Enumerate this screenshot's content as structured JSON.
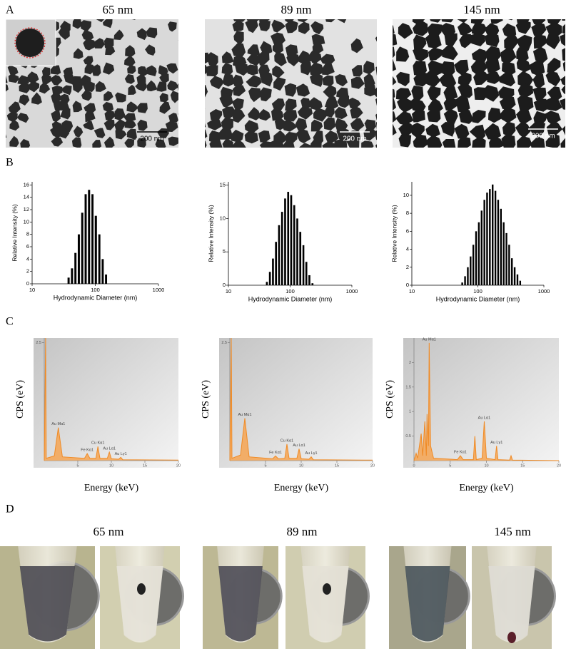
{
  "panel_labels": [
    "A",
    "B",
    "C",
    "D"
  ],
  "tem": {
    "titles": [
      "65 nm",
      "89 nm",
      "145 nm"
    ],
    "scale_bars": [
      "200 nm",
      "200 nm",
      "200 nm"
    ]
  },
  "chart_data": [
    {
      "type": "bar",
      "xscale": "log",
      "color": "#000000",
      "x": [
        37.8,
        42.8,
        48.5,
        54.9,
        62.2,
        70.4,
        79.7,
        90.3,
        102,
        116,
        131,
        148
      ],
      "values": [
        1,
        2.5,
        5,
        8,
        11.5,
        14.5,
        15.2,
        14.5,
        11,
        8,
        4,
        1.5
      ],
      "xlim": [
        10,
        1000
      ],
      "xticks": [
        10,
        100,
        1000
      ],
      "ylim": [
        0,
        16.5
      ],
      "yticks": [
        0,
        2,
        4,
        6,
        8,
        10,
        12,
        14,
        16
      ],
      "xlabel": "Hydrodynamic Diameter (nm)",
      "ylabel": "Relative Intensity (%)"
    },
    {
      "type": "bar",
      "xscale": "log",
      "color": "#000000",
      "x": [
        42,
        47,
        52.7,
        59,
        66.1,
        74,
        82.9,
        92.9,
        104,
        116.5,
        130.5,
        146,
        164,
        183,
        205,
        230
      ],
      "values": [
        0.5,
        2,
        4,
        6.5,
        9,
        11,
        13,
        14,
        13.5,
        12,
        10,
        8,
        6,
        3.5,
        1.5,
        0.3
      ],
      "xlim": [
        10,
        1000
      ],
      "xticks": [
        10,
        100,
        1000
      ],
      "ylim": [
        0,
        15.5
      ],
      "yticks": [
        0,
        5,
        10,
        15
      ],
      "xlabel": "Hydrodynamic Diameter (nm)",
      "ylabel": "Relative Intensity (%)"
    },
    {
      "type": "bar",
      "xscale": "log",
      "color": "#000000",
      "x": [
        58,
        64,
        70.5,
        77.6,
        85.4,
        94,
        103.5,
        114,
        125.5,
        138,
        152,
        167.5,
        184.5,
        203,
        223.5,
        246,
        271,
        298,
        328,
        361,
        398,
        438
      ],
      "values": [
        0.3,
        1,
        2,
        3.2,
        4.5,
        6,
        7,
        8.3,
        9.5,
        10.3,
        10.7,
        11.2,
        10.5,
        9.5,
        8.5,
        7,
        5.8,
        4.5,
        3,
        2,
        1.2,
        0.5
      ],
      "xlim": [
        10,
        1000
      ],
      "xticks": [
        10,
        100,
        1000
      ],
      "ylim": [
        0,
        11.5
      ],
      "yticks": [
        0,
        2,
        4,
        6,
        8,
        10
      ],
      "xlabel": "Hydrodynamic Diameter (nm)",
      "ylabel": "Relative Intensity (%)"
    },
    {
      "type": "line",
      "color": "#f08a24",
      "x": [
        0,
        0.2,
        0.3,
        1.5,
        2.1,
        2.7,
        6.0,
        6.4,
        6.8,
        7.7,
        8.0,
        8.3,
        9.4,
        9.7,
        10.0,
        11.1,
        11.4,
        11.7,
        20
      ],
      "values": [
        0,
        2.6,
        0.05,
        0.1,
        0.7,
        0.08,
        0.05,
        0.15,
        0.05,
        0.05,
        0.3,
        0.05,
        0.05,
        0.18,
        0.04,
        0.03,
        0.07,
        0.02,
        0.01
      ],
      "xlim": [
        0,
        20
      ],
      "xticks": [
        5,
        10,
        15,
        20
      ],
      "ylim": [
        0,
        2.6
      ],
      "yticks": [
        2.5
      ],
      "xlabel": "Energy (keV)",
      "ylabel": "CPS (eV)",
      "annotations": [
        {
          "text": "Au Mα1",
          "x": 2.1
        },
        {
          "text": "Fe Kα1",
          "x": 6.4
        },
        {
          "text": "Cu Kα1",
          "x": 8.0
        },
        {
          "text": "Au Lα1",
          "x": 9.7
        },
        {
          "text": "Au Lγ1",
          "x": 11.4
        }
      ]
    },
    {
      "type": "line",
      "color": "#f08a24",
      "x": [
        0,
        0.2,
        0.3,
        1.5,
        2.1,
        2.7,
        6.0,
        6.4,
        6.8,
        7.7,
        8.0,
        8.3,
        9.4,
        9.7,
        10.0,
        11.1,
        11.4,
        11.7,
        20
      ],
      "values": [
        0,
        2.6,
        0.05,
        0.12,
        0.9,
        0.08,
        0.04,
        0.1,
        0.04,
        0.05,
        0.35,
        0.05,
        0.05,
        0.25,
        0.04,
        0.03,
        0.08,
        0.02,
        0.01
      ],
      "xlim": [
        0,
        20
      ],
      "xticks": [
        5,
        10,
        15,
        20
      ],
      "ylim": [
        0,
        2.6
      ],
      "yticks": [
        2.5
      ],
      "xlabel": "Energy (keV)",
      "ylabel": "CPS (eV)",
      "annotations": [
        {
          "text": "Au Mα1",
          "x": 2.1
        },
        {
          "text": "Fe Kα1",
          "x": 6.4
        },
        {
          "text": "Cu Kα1",
          "x": 8.0
        },
        {
          "text": "Au Lα1",
          "x": 9.7
        },
        {
          "text": "Au Lγ1",
          "x": 11.4
        }
      ]
    },
    {
      "type": "line",
      "color": "#f08a24",
      "x": [
        0,
        0.3,
        0.5,
        1.0,
        1.2,
        1.5,
        1.7,
        1.8,
        2.0,
        2.1,
        2.3,
        2.7,
        6.0,
        6.4,
        6.8,
        8.2,
        8.4,
        8.6,
        9.4,
        9.7,
        10.0,
        11.2,
        11.4,
        11.6,
        13.2,
        13.4,
        13.6,
        20
      ],
      "values": [
        0,
        0.15,
        0.05,
        0.55,
        0.1,
        0.8,
        0.1,
        0.95,
        0.3,
        2.4,
        0.3,
        0.05,
        0.02,
        0.1,
        0.02,
        0.02,
        0.5,
        0.02,
        0.05,
        0.8,
        0.05,
        0.02,
        0.3,
        0.02,
        0.01,
        0.1,
        0.01,
        0
      ],
      "xlim": [
        0,
        20
      ],
      "xticks": [
        0,
        5,
        10,
        15,
        20
      ],
      "ylim": [
        0,
        2.5
      ],
      "yticks": [
        0.5,
        1,
        1.5,
        2
      ],
      "xlabel": "Energy (keV)",
      "ylabel": "CPS (eV)",
      "annotations": [
        {
          "text": "Au Mα1",
          "x": 2.1
        },
        {
          "text": "Fe Kα1",
          "x": 6.4
        },
        {
          "text": "Au Lα1",
          "x": 9.7
        },
        {
          "text": "Au Lγ1",
          "x": 11.4
        }
      ]
    }
  ],
  "photos": {
    "titles": [
      "65 nm",
      "89 nm",
      "145 nm"
    ]
  }
}
